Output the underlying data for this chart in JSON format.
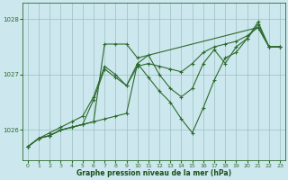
{
  "background_color": "#cce8ee",
  "grid_color": "#9bbfbf",
  "line_color": "#2d6a2d",
  "marker_color": "#2d6a2d",
  "xlabel": "Graphe pression niveau de la mer (hPa)",
  "xlabel_color": "#1a4d1a",
  "ylabel_ticks": [
    1026,
    1027,
    1028
  ],
  "xlim": [
    -0.5,
    23.5
  ],
  "ylim": [
    1025.45,
    1028.3
  ],
  "xticks": [
    0,
    1,
    2,
    3,
    4,
    5,
    6,
    7,
    8,
    9,
    10,
    11,
    12,
    13,
    14,
    15,
    16,
    17,
    18,
    19,
    20,
    21,
    22,
    23
  ],
  "lines": [
    {
      "x": [
        0,
        1,
        2,
        3,
        4,
        5,
        6,
        7,
        8,
        9,
        10,
        21,
        22,
        23
      ],
      "y": [
        1025.7,
        1025.85,
        1025.9,
        1026.0,
        1026.05,
        1026.1,
        1026.15,
        1027.55,
        1027.55,
        1027.55,
        1027.3,
        1027.85,
        1027.5,
        1027.5
      ]
    },
    {
      "x": [
        0,
        1,
        2,
        3,
        4,
        5,
        6,
        7,
        8,
        9,
        10,
        11,
        12,
        13,
        14,
        15,
        16,
        17,
        18,
        19,
        20,
        21,
        22,
        23
      ],
      "y": [
        1025.7,
        1025.85,
        1025.9,
        1026.0,
        1026.05,
        1026.1,
        1026.15,
        1026.2,
        1026.25,
        1026.3,
        1027.2,
        1026.95,
        1026.7,
        1026.5,
        1026.2,
        1025.95,
        1026.4,
        1026.9,
        1027.3,
        1027.4,
        1027.65,
        1027.9,
        1027.5,
        1027.5
      ]
    },
    {
      "x": [
        0,
        1,
        2,
        3,
        4,
        5,
        6,
        7,
        8,
        9,
        10,
        11,
        12,
        13,
        14,
        15,
        16,
        17,
        18,
        19,
        20,
        21,
        22,
        23
      ],
      "y": [
        1025.7,
        1025.85,
        1025.95,
        1026.05,
        1026.15,
        1026.25,
        1026.6,
        1027.15,
        1027.0,
        1026.8,
        1027.15,
        1027.2,
        1027.15,
        1027.1,
        1027.05,
        1027.2,
        1027.4,
        1027.5,
        1027.55,
        1027.6,
        1027.7,
        1027.85,
        1027.5,
        1027.5
      ]
    },
    {
      "x": [
        0,
        1,
        2,
        3,
        4,
        5,
        6,
        7,
        8,
        9,
        10,
        11,
        12,
        13,
        14,
        15,
        16,
        17,
        18,
        19,
        20,
        21,
        22,
        23
      ],
      "y": [
        1025.7,
        1025.85,
        1025.9,
        1026.0,
        1026.05,
        1026.1,
        1026.55,
        1027.1,
        1026.95,
        1026.8,
        1027.2,
        1027.35,
        1027.0,
        1026.75,
        1026.6,
        1026.75,
        1027.2,
        1027.45,
        1027.2,
        1027.5,
        1027.65,
        1027.95,
        1027.5,
        1027.5
      ]
    }
  ]
}
